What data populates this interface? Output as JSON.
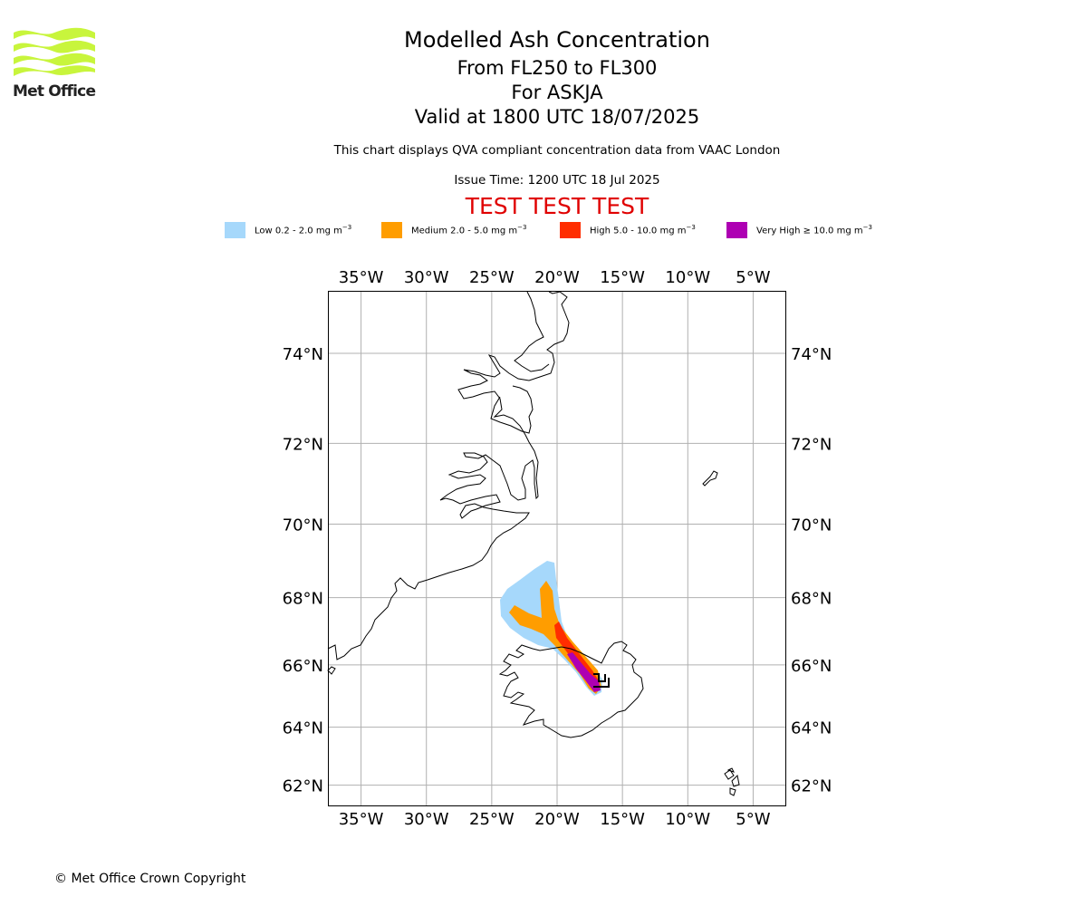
{
  "logo": {
    "text": "Met Office",
    "color": "#c8f53c"
  },
  "header": {
    "title": "Modelled Ash Concentration",
    "levels": "From FL250 to FL300",
    "volcano": "For ASKJA",
    "valid": "Valid at 1800 UTC 18/07/2025",
    "info": "This chart displays QVA compliant concentration data from VAAC London",
    "issue": "Issue Time: 1200 UTC 18 Jul 2025",
    "test": "TEST TEST TEST"
  },
  "legend": [
    {
      "label": "Low 0.2 - 2.0 mg m",
      "color": "#a6d8fb"
    },
    {
      "label": "Medium 2.0 - 5.0 mg m",
      "color": "#ff9d00"
    },
    {
      "label": "High 5.0 - 10.0 mg m",
      "color": "#ff2d00"
    },
    {
      "label": "Very High ≥ 10.0 mg m",
      "color": "#ae00b3"
    }
  ],
  "legend_unit_exp": "−3",
  "map": {
    "projection": "mercator",
    "lon_range_deg": [
      -37.5,
      -2.5
    ],
    "lat_range_deg": [
      61.25,
      75.25
    ],
    "lon_ticks": [
      "35°W",
      "30°W",
      "25°W",
      "20°W",
      "15°W",
      "10°W",
      "5°W"
    ],
    "lat_ticks": [
      "74°N",
      "72°N",
      "70°N",
      "68°N",
      "66°N",
      "64°N",
      "62°N"
    ],
    "gridlines": true,
    "volcano_marker": "Askja",
    "colors": {
      "grid": "#b0b0b0",
      "coast": "#000000",
      "frame": "#000000"
    }
  },
  "footer": {
    "copyright": "© Met Office Crown Copyright"
  }
}
